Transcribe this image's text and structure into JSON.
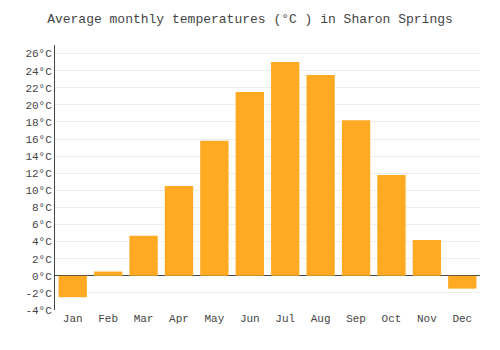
{
  "chart_data": {
    "type": "bar",
    "title": "Average monthly temperatures (°C ) in Sharon Springs",
    "categories": [
      "Jan",
      "Feb",
      "Mar",
      "Apr",
      "May",
      "Jun",
      "Jul",
      "Aug",
      "Sep",
      "Oct",
      "Nov",
      "Dec"
    ],
    "values": [
      -2.5,
      0.5,
      4.7,
      10.5,
      15.8,
      21.5,
      25.0,
      23.5,
      18.2,
      11.8,
      4.2,
      -1.5
    ],
    "color": "#FFAA22",
    "ylim": [
      -4,
      27
    ],
    "yticks": [
      {
        "value": -4,
        "label": "-4°C"
      },
      {
        "value": -2,
        "label": "-2°C"
      },
      {
        "value": 0,
        "label": "0°C"
      },
      {
        "value": 2,
        "label": "2°C"
      },
      {
        "value": 4,
        "label": "4°C"
      },
      {
        "value": 6,
        "label": "6°C"
      },
      {
        "value": 8,
        "label": "8°C"
      },
      {
        "value": 10,
        "label": "10°C"
      },
      {
        "value": 12,
        "label": "12°C"
      },
      {
        "value": 14,
        "label": "14°C"
      },
      {
        "value": 16,
        "label": "16°C"
      },
      {
        "value": 18,
        "label": "18°C"
      },
      {
        "value": 20,
        "label": "20°C"
      },
      {
        "value": 22,
        "label": "22°C"
      },
      {
        "value": 24,
        "label": "24°C"
      },
      {
        "value": 26,
        "label": "26°C"
      }
    ],
    "grid": true
  }
}
